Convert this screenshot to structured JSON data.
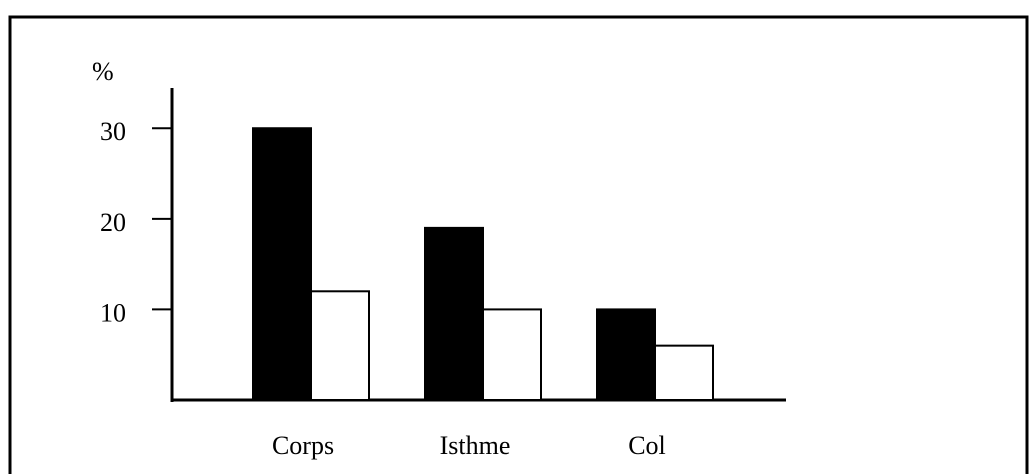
{
  "chart_data": {
    "type": "bar",
    "y_label": "%",
    "categories": [
      "Corps",
      "Isthme",
      "Col"
    ],
    "series": [
      {
        "color": "#000000",
        "values": [
          30,
          19,
          10
        ]
      },
      {
        "color": "#ffffff",
        "values": [
          12,
          10,
          6
        ]
      }
    ],
    "ylim": [
      0,
      34
    ],
    "yticks": [
      10,
      20,
      30
    ],
    "grid": false
  }
}
